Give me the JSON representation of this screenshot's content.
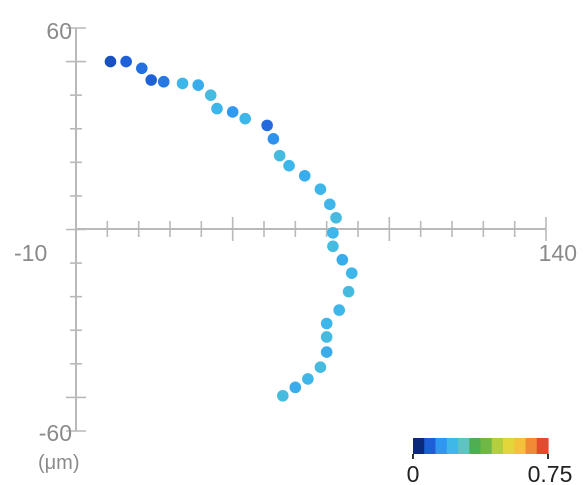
{
  "chart_data": {
    "type": "scatter",
    "title": "",
    "xlabel": "",
    "ylabel": "",
    "unit_label": "(μm)",
    "xlim": [
      -10,
      140
    ],
    "ylim": [
      -60,
      60
    ],
    "x_tick_labels": [
      "-10",
      "140"
    ],
    "y_tick_labels": [
      "60",
      "-60"
    ],
    "grid": false,
    "points": [
      {
        "x": 1,
        "y": 50,
        "v": 0.05
      },
      {
        "x": 6,
        "y": 50,
        "v": 0.07
      },
      {
        "x": 11,
        "y": 48,
        "v": 0.09
      },
      {
        "x": 14,
        "y": 44.5,
        "v": 0.07
      },
      {
        "x": 18,
        "y": 44,
        "v": 0.1
      },
      {
        "x": 24,
        "y": 43.5,
        "v": 0.2
      },
      {
        "x": 29,
        "y": 43,
        "v": 0.18
      },
      {
        "x": 33,
        "y": 40,
        "v": 0.22
      },
      {
        "x": 35,
        "y": 36,
        "v": 0.2
      },
      {
        "x": 40,
        "y": 35,
        "v": 0.14
      },
      {
        "x": 44,
        "y": 33,
        "v": 0.2
      },
      {
        "x": 51,
        "y": 31,
        "v": 0.08
      },
      {
        "x": 53,
        "y": 27,
        "v": 0.13
      },
      {
        "x": 55,
        "y": 22,
        "v": 0.22
      },
      {
        "x": 58,
        "y": 19,
        "v": 0.2
      },
      {
        "x": 63,
        "y": 16,
        "v": 0.18
      },
      {
        "x": 68,
        "y": 12,
        "v": 0.2
      },
      {
        "x": 71,
        "y": 7.5,
        "v": 0.2
      },
      {
        "x": 73,
        "y": 3.5,
        "v": 0.22
      },
      {
        "x": 72,
        "y": -1,
        "v": 0.2
      },
      {
        "x": 72,
        "y": -5,
        "v": 0.22
      },
      {
        "x": 75,
        "y": -9,
        "v": 0.18
      },
      {
        "x": 78,
        "y": -13,
        "v": 0.2
      },
      {
        "x": 77,
        "y": -18.5,
        "v": 0.22
      },
      {
        "x": 74,
        "y": -24,
        "v": 0.2
      },
      {
        "x": 70,
        "y": -28,
        "v": 0.2
      },
      {
        "x": 70,
        "y": -32,
        "v": 0.22
      },
      {
        "x": 70,
        "y": -36.5,
        "v": 0.18
      },
      {
        "x": 68,
        "y": -41,
        "v": 0.22
      },
      {
        "x": 64,
        "y": -44.5,
        "v": 0.2
      },
      {
        "x": 60,
        "y": -47,
        "v": 0.18
      },
      {
        "x": 56,
        "y": -49.5,
        "v": 0.22
      }
    ],
    "colorbar": {
      "min_label": "0",
      "max_label": "0.75",
      "min": 0,
      "max": 0.75,
      "colors": [
        "#0b2a7a",
        "#1e5fd8",
        "#2f97f0",
        "#3fb8e8",
        "#5fc4c0",
        "#4fae52",
        "#6fb845",
        "#b3cf3e",
        "#e3d63a",
        "#f4c23a",
        "#f08a35",
        "#e34a2e"
      ]
    }
  }
}
